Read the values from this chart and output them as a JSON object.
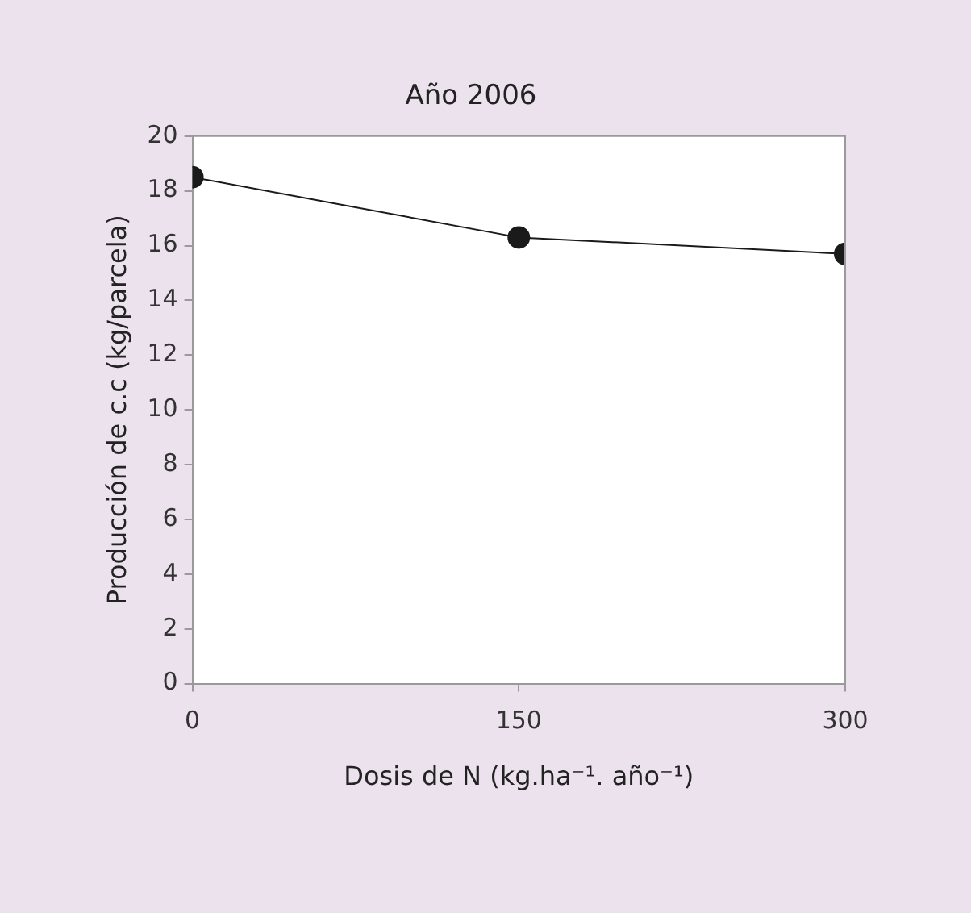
{
  "chart_data": {
    "type": "line",
    "title": "Año 2006",
    "xlabel": "Dosis de N (kg.ha⁻¹. año⁻¹)",
    "ylabel": "Producción de c.c (kg/parcela)",
    "x": [
      0,
      150,
      300
    ],
    "series": [
      {
        "color": "#1a1a1a",
        "values": [
          18.5,
          16.3,
          15.7
        ]
      }
    ],
    "xlim": [
      0,
      300
    ],
    "xticks": [
      0,
      150,
      300
    ],
    "ylim": [
      0,
      20
    ],
    "yticks": [
      0,
      2,
      4,
      6,
      8,
      10,
      12,
      14,
      16,
      18,
      20
    ],
    "grid": false,
    "legend": false,
    "marker": "circle",
    "line_style": "solid"
  }
}
